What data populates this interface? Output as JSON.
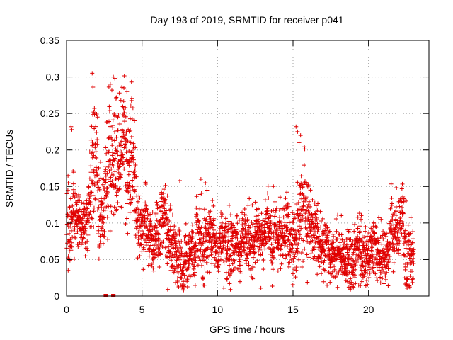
{
  "chart_data": {
    "type": "scatter",
    "title": "Day 193 of 2019, SRMTID for receiver p041",
    "xlabel": "GPS time / hours",
    "ylabel": "SRMTID / TECUs",
    "xlim": [
      0,
      24
    ],
    "ylim": [
      0,
      0.35
    ],
    "x_ticks": [
      0,
      5,
      10,
      15,
      20
    ],
    "x_tick_labels": [
      "0",
      "5",
      "10",
      "15",
      "20"
    ],
    "y_ticks": [
      0,
      0.05,
      0.1,
      0.15,
      0.2,
      0.25,
      0.3,
      0.35
    ],
    "y_tick_labels": [
      "0",
      "0.05",
      "0.1",
      "0.15",
      "0.2",
      "0.25",
      "0.3",
      "0.35"
    ],
    "grid": true,
    "marker": "plus",
    "point_color": "#e00000",
    "seed": 193,
    "x_step_hours": 0.0083,
    "envelope": [
      [
        0.0,
        0.095,
        0.03
      ],
      [
        0.3,
        0.1,
        0.035
      ],
      [
        0.8,
        0.1,
        0.02
      ],
      [
        1.2,
        0.105,
        0.02
      ],
      [
        1.5,
        0.12,
        0.04
      ],
      [
        1.8,
        0.16,
        0.06
      ],
      [
        2.2,
        0.13,
        0.04
      ],
      [
        2.5,
        0.12,
        0.04
      ],
      [
        2.8,
        0.16,
        0.05
      ],
      [
        3.2,
        0.19,
        0.05
      ],
      [
        3.6,
        0.19,
        0.045
      ],
      [
        4.0,
        0.18,
        0.05
      ],
      [
        4.4,
        0.19,
        0.04
      ],
      [
        4.7,
        0.09,
        0.03
      ],
      [
        5.5,
        0.075,
        0.025
      ],
      [
        6.5,
        0.085,
        0.03
      ],
      [
        7.0,
        0.07,
        0.025
      ],
      [
        7.7,
        0.05,
        0.02
      ],
      [
        8.5,
        0.065,
        0.025
      ],
      [
        9.3,
        0.085,
        0.03
      ],
      [
        10.0,
        0.07,
        0.02
      ],
      [
        11.0,
        0.075,
        0.025
      ],
      [
        12.0,
        0.08,
        0.025
      ],
      [
        13.0,
        0.075,
        0.025
      ],
      [
        14.0,
        0.08,
        0.025
      ],
      [
        14.7,
        0.085,
        0.025
      ],
      [
        15.2,
        0.07,
        0.025
      ],
      [
        15.6,
        0.115,
        0.045
      ],
      [
        16.0,
        0.09,
        0.03
      ],
      [
        17.0,
        0.07,
        0.025
      ],
      [
        18.3,
        0.045,
        0.02
      ],
      [
        19.0,
        0.06,
        0.025
      ],
      [
        20.0,
        0.065,
        0.025
      ],
      [
        21.0,
        0.05,
        0.02
      ],
      [
        21.7,
        0.09,
        0.03
      ],
      [
        22.2,
        0.095,
        0.03
      ],
      [
        22.5,
        0.07,
        0.03
      ],
      [
        23.0,
        0.065,
        0.025
      ]
    ],
    "outliers": [
      [
        1.7,
        0.305
      ],
      [
        3.1,
        0.3
      ],
      [
        3.2,
        0.298
      ],
      [
        4.3,
        0.293
      ],
      [
        2.9,
        0.29
      ],
      [
        1.75,
        0.286
      ],
      [
        3.8,
        0.285
      ],
      [
        3.0,
        0.282
      ],
      [
        4.0,
        0.28
      ],
      [
        3.5,
        0.278
      ],
      [
        3.3,
        0.272
      ],
      [
        3.6,
        0.268
      ],
      [
        2.05,
        0.245
      ],
      [
        3.9,
        0.258
      ],
      [
        1.8,
        0.252
      ],
      [
        3.4,
        0.245
      ],
      [
        4.5,
        0.24
      ],
      [
        0.3,
        0.232
      ],
      [
        0.35,
        0.228
      ],
      [
        15.2,
        0.232
      ],
      [
        15.3,
        0.225
      ],
      [
        15.5,
        0.22
      ],
      [
        15.4,
        0.21
      ],
      [
        0.1,
        0.165
      ],
      [
        0.12,
        0.155
      ],
      [
        9.2,
        0.155
      ],
      [
        9.3,
        0.145
      ],
      [
        13.7,
        0.15
      ],
      [
        7.5,
        0.158
      ],
      [
        8.9,
        0.16
      ],
      [
        22.5,
        0.13
      ],
      [
        22.3,
        0.128
      ],
      [
        18.2,
        0.11
      ],
      [
        19.5,
        0.105
      ],
      [
        19.8,
        0.095
      ],
      [
        19.0,
        0.012
      ],
      [
        21.3,
        0.014
      ],
      [
        22.7,
        0.014
      ],
      [
        18.6,
        0.02
      ],
      [
        20.8,
        0.018
      ]
    ],
    "zero_points": [
      2.55,
      2.65,
      3.05,
      3.15
    ]
  }
}
